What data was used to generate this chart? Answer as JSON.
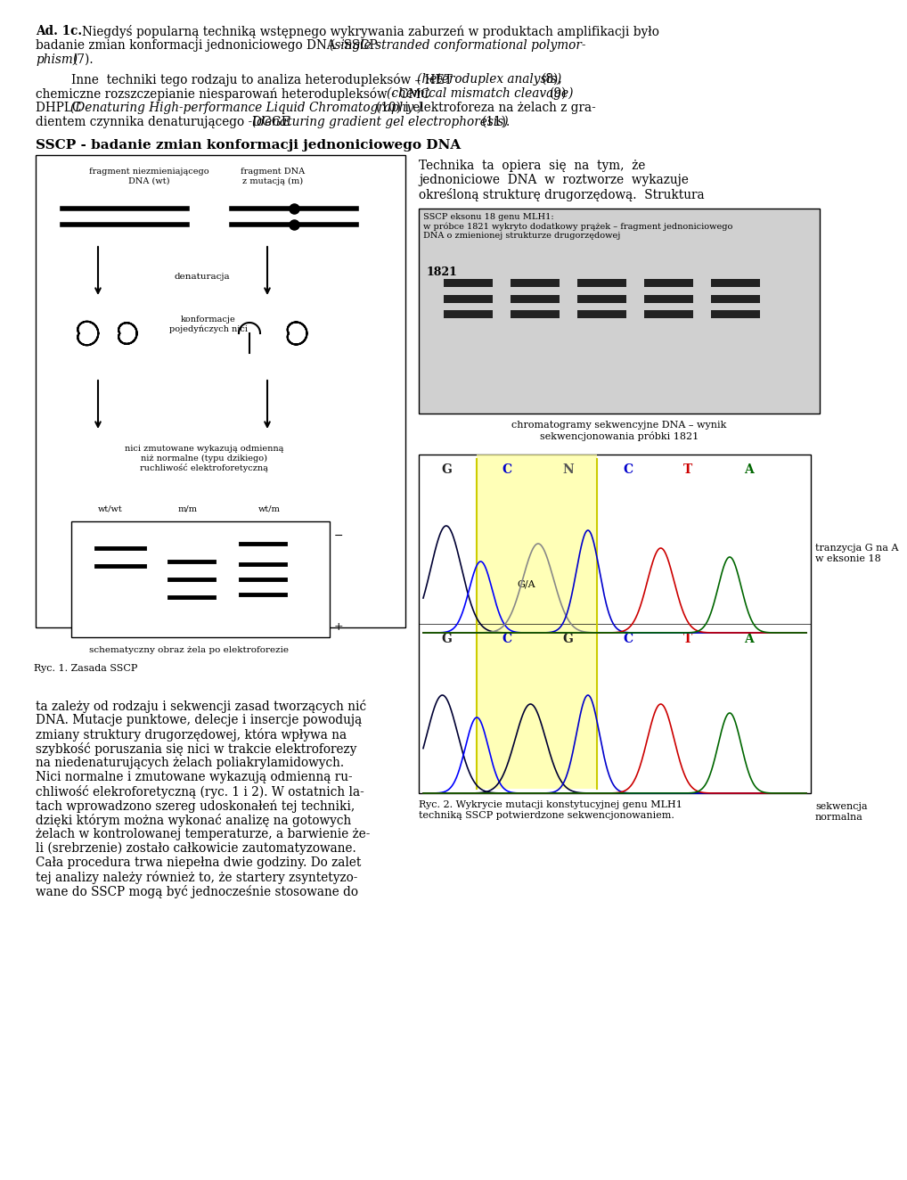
{
  "title_bold": "Ad. 1c.",
  "para1": "Niegdyś popularną techniką wstępnego wykrywania zaburzeń w produktach amplifikacji było badanie zmian konformacji jednoniciowego DNA -SSCP (single stranded conformational polymorphism) (7).",
  "para2": "Inne  techniki tego rodzaju to analiza heterodupleksów – HET (heteroduplex analysis) (8), chemiczne rozszczepianie niesparowań heterodupleksów - CMC (chemical mismatch cleavage) (9) DHPLC (Denaturing High-performance Liquid Chromatography ) (10) i elektroforeza na żelach z gradientem czynnika denaturującego -DGGE (denaturing gradient gel electrophoresis) (11).",
  "sscp_title": "SSCP - badanie zmian konformacji jednoniciowego DNA",
  "ryc1_label": "Ryc. 1. Zasada SSCP",
  "para3": "ta zależy od rodzaju i sekwencji zasad tworzących nić DNA. Mutacje punktowe, delecje i insercje powodują zmiany struktury drugorzędowej, która wpływa na szybkość poruszania się nici w trakcie elektroforezy na niedenaturujących żelach poliakrylamidowych. Nici normalne i zmutowane wykazują odmienną ruchliwość elekroforetyczną (ryc. 1 i 2). W ostatnich latach wprowadzono szereg udoskonałeń tej techniki, dzięki którym można wykonać analizę na gotowych żelach w kontrolowanej temperaturze, a barwienie żeli (srebrzenie) zostało całkowicie zautomatyzowane. Cała procedura trwa niepełna dwie godziny. Do zalet tej analizy należy również to, że startery zsyntetyzowane do SSCP mogą być jednocześnie stosowane do",
  "technika_text": "Technika  ta  opiera  się  na  tym,  że jednoniciowe  DNA  w  roztworze  wykazuje określoną strukturę drugorzędową.  Struktura",
  "sscp_caption": "SSCP eksonu 18 genu MLH1:\nw próbce 1821 wykryto dodatkowy prążek – fragment jednoniciowego\nDNA o zmienionej strukturze drugorzędowej",
  "chrom_caption": "chromatogramy sekwencyjne DNA – wynik\nsekwencjonowania próbki 1821",
  "ryc2_label": "Ryc. 2. Wykrycie mutacji konstytucyjnej genu MLH1\ntechniką SSCP potwierdzone sekwencjonowaniem.",
  "tranzycja_text": "tranzycja G na A\nw eksonie 18",
  "sekwencja_text": "sekwencja\nnormalna",
  "bg_color": "#ffffff",
  "text_color": "#000000",
  "font_size_body": 9.5,
  "font_size_small": 7.5,
  "fig_width": 9.6,
  "fig_height": 13.04
}
